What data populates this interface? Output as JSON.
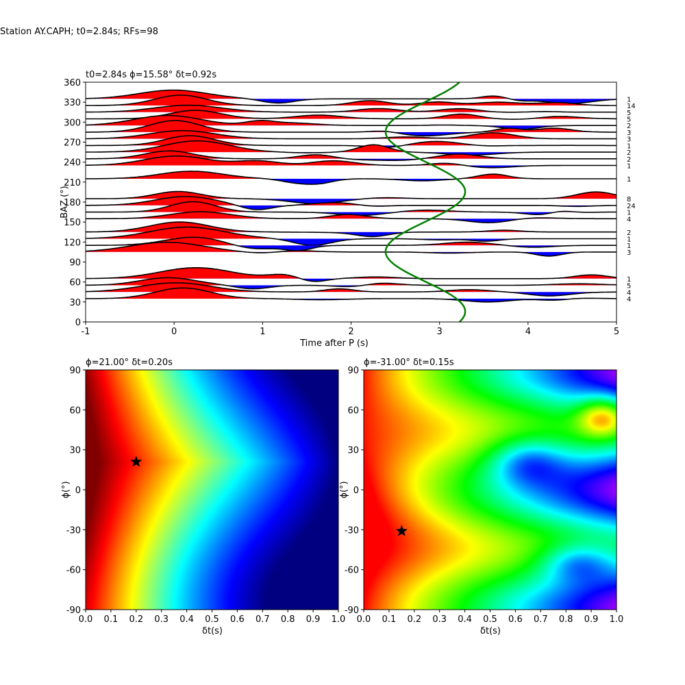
{
  "figure": {
    "suptitle": "Station AY.CAPH; t0=2.84s; RFs=98"
  },
  "chart_data": [
    {
      "type": "line",
      "title": "t0=2.84s ϕ=15.58° δt=0.92s",
      "xlabel": "Time after P (s)",
      "ylabel": "BAZ (°)",
      "xlim": [
        -1,
        5
      ],
      "ylim": [
        0,
        360
      ],
      "xticks": [
        -1,
        0,
        1,
        2,
        3,
        4,
        5
      ],
      "yticks": [
        0,
        30,
        60,
        90,
        120,
        150,
        180,
        210,
        240,
        270,
        300,
        330,
        360
      ],
      "fill_positive_color": "#ff0000",
      "fill_negative_color": "#0000ff",
      "trace_color": "#000000",
      "t0_curve_color": "#008000",
      "baz_bins": [
        {
          "baz": 335,
          "count": "1"
        },
        {
          "baz": 325,
          "count": "14"
        },
        {
          "baz": 315,
          "count": "5"
        },
        {
          "baz": 305,
          "count": "5"
        },
        {
          "baz": 295,
          "count": "2"
        },
        {
          "baz": 285,
          "count": "3"
        },
        {
          "baz": 275,
          "count": "3"
        },
        {
          "baz": 265,
          "count": "1"
        },
        {
          "baz": 255,
          "count": "2"
        },
        {
          "baz": 245,
          "count": "2"
        },
        {
          "baz": 235,
          "count": "1"
        },
        {
          "baz": 215,
          "count": "1"
        },
        {
          "baz": 185,
          "count": "8"
        },
        {
          "baz": 175,
          "count": "24"
        },
        {
          "baz": 165,
          "count": "1"
        },
        {
          "baz": 155,
          "count": "4"
        },
        {
          "baz": 135,
          "count": "2"
        },
        {
          "baz": 125,
          "count": "1"
        },
        {
          "baz": 115,
          "count": "1"
        },
        {
          "baz": 105,
          "count": "3"
        },
        {
          "baz": 65,
          "count": "1"
        },
        {
          "baz": 55,
          "count": "5"
        },
        {
          "baz": 45,
          "count": "4"
        },
        {
          "baz": 35,
          "count": "4"
        }
      ],
      "t0_curve": {
        "mean_time": 2.84,
        "amplitude": 0.45,
        "phase_deg": 15.58
      }
    },
    {
      "type": "heatmap",
      "title": "ϕ=21.00° δt=0.20s",
      "xlabel": "δt(s)",
      "ylabel": "ϕ(°)",
      "xlim": [
        0,
        1
      ],
      "ylim": [
        -90,
        90
      ],
      "xticks": [
        0.0,
        0.1,
        0.2,
        0.3,
        0.4,
        0.5,
        0.6,
        0.7,
        0.8,
        0.9,
        1.0
      ],
      "yticks": [
        -90,
        -60,
        -30,
        0,
        30,
        60,
        90
      ],
      "colormap": "jet",
      "best": {
        "dt": 0.2,
        "phi": 21.0
      }
    },
    {
      "type": "heatmap",
      "title": "ϕ=-31.00° δt=0.15s",
      "xlabel": "δt(s)",
      "ylabel": "ϕ(°)",
      "xlim": [
        0,
        1
      ],
      "ylim": [
        -90,
        90
      ],
      "xticks": [
        0.0,
        0.1,
        0.2,
        0.3,
        0.4,
        0.5,
        0.6,
        0.7,
        0.8,
        0.9,
        1.0
      ],
      "yticks": [
        -90,
        -60,
        -30,
        0,
        30,
        60,
        90
      ],
      "colormap": "gist_rainbow",
      "best": {
        "dt": 0.15,
        "phi": -31.0
      }
    }
  ]
}
